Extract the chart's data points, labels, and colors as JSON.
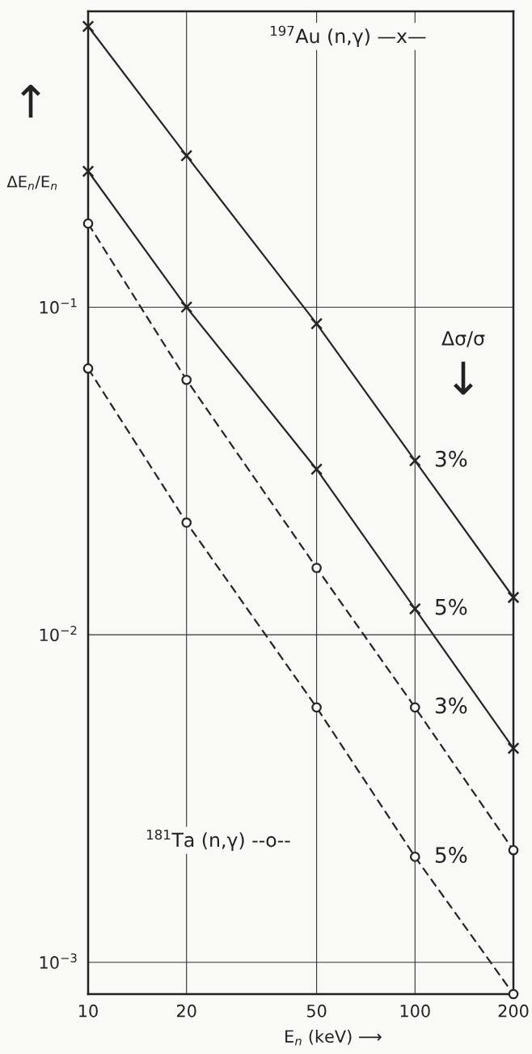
{
  "chart_data": {
    "type": "line",
    "x": [
      10,
      20,
      50,
      100,
      200
    ],
    "series": [
      {
        "name": "3%",
        "color": "#262626",
        "marker": "cross",
        "line_style": "solid",
        "values": [
          0.72,
          0.29,
          0.089,
          0.034,
          0.013
        ]
      },
      {
        "name": "5%",
        "color": "#262626",
        "marker": "cross",
        "line_style": "solid",
        "values": [
          0.26,
          0.1,
          0.032,
          0.012,
          0.0045
        ]
      },
      {
        "name": "3%",
        "color": "#262626",
        "marker": "circle",
        "line_style": "dashed",
        "values": [
          0.18,
          0.06,
          0.016,
          0.006,
          0.0022
        ]
      },
      {
        "name": "5%",
        "color": "#262626",
        "marker": "circle",
        "line_style": "dashed",
        "values": [
          0.065,
          0.022,
          0.006,
          0.0021,
          0.0008
        ]
      }
    ],
    "xlabel": "E$_{n}$ (keV) ⟶",
    "ylabel": "ΔE$_{n}$/E$_{n}$",
    "annotations": [
      "↑",
      "Δσ/σ",
      "↓",
      "$^{197}$Au (n,γ) —x—",
      "$^{181}$Ta (n,γ) --o--"
    ],
    "log": "xy",
    "xlim": [
      10,
      200
    ],
    "ylim": [
      0.0008,
      0.8
    ],
    "xticks": [
      10,
      20,
      50,
      100,
      200
    ],
    "yticks": [
      {
        "value": 0.001,
        "label": "10$^{−3}$"
      },
      {
        "value": 0.01,
        "label": "10$^{−2}$"
      },
      {
        "value": 0.1,
        "label": "10$^{−1}$"
      }
    ],
    "grid": true
  }
}
